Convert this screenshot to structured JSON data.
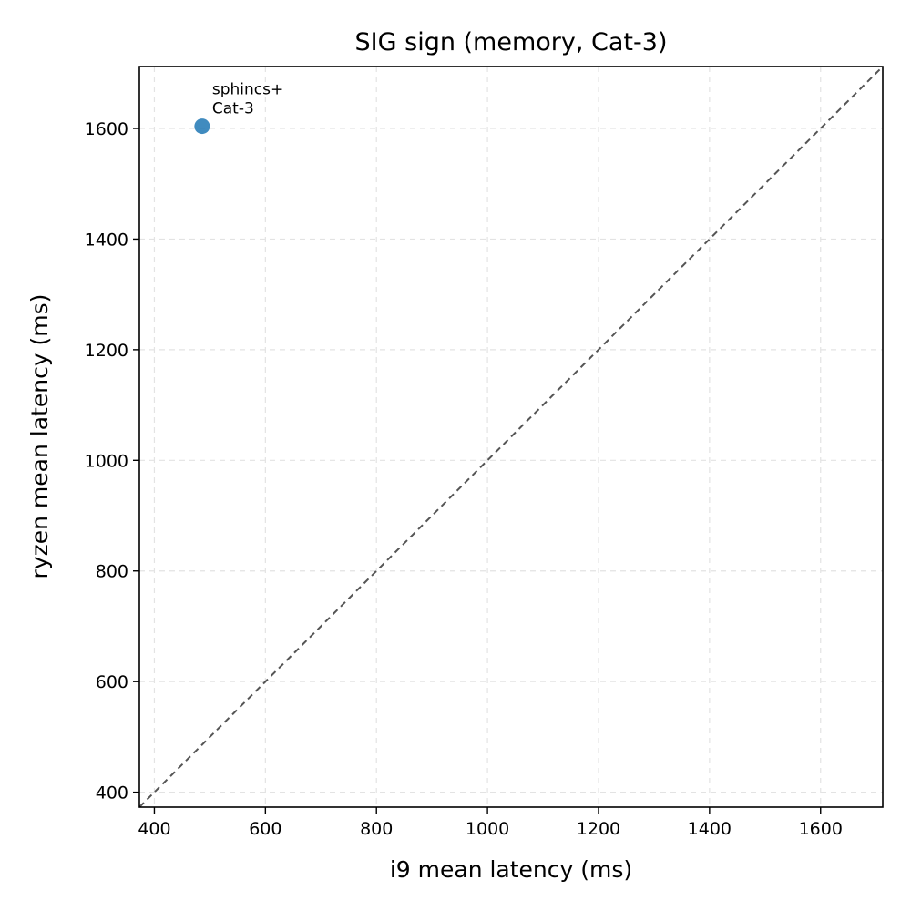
{
  "chart_data": {
    "type": "scatter",
    "title": "SIG sign (memory, Cat-3)",
    "xlabel": "i9 mean latency (ms)",
    "ylabel": "ryzen mean latency (ms)",
    "xlim": [
      373,
      1712
    ],
    "ylim": [
      373,
      1712
    ],
    "xticks": [
      400,
      600,
      800,
      1000,
      1200,
      1400,
      1600
    ],
    "yticks": [
      400,
      600,
      800,
      1000,
      1200,
      1400,
      1600
    ],
    "grid": true,
    "reference_line": "y = x",
    "points": [
      {
        "x": 486,
        "y": 1604,
        "label": [
          "sphincs+",
          "Cat-3"
        ],
        "color": "#1f77b4"
      }
    ]
  }
}
